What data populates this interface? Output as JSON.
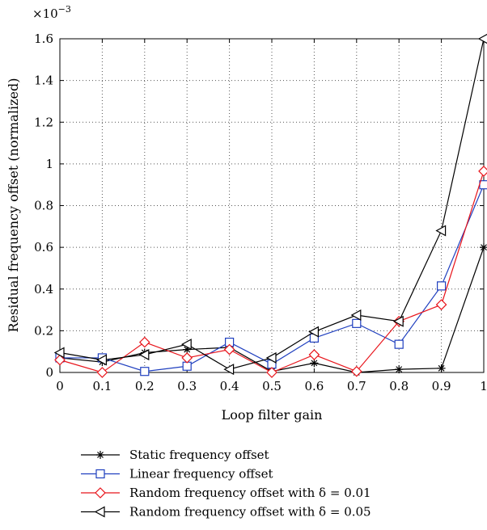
{
  "chart_data": {
    "type": "line",
    "xlabel": "Loop filter gain",
    "ylabel": "Residual frequency offset (normalized)",
    "y_multiplier_label": "×10",
    "y_multiplier_exp": "−3",
    "xlim": [
      0,
      1
    ],
    "ylim": [
      0,
      1.6
    ],
    "x_ticks": [
      0,
      0.1,
      0.2,
      0.3,
      0.4,
      0.5,
      0.6,
      0.7,
      0.8,
      0.9,
      1
    ],
    "x_tick_labels": [
      "0",
      "0.1",
      "0.2",
      "0.3",
      "0.4",
      "0.5",
      "0.6",
      "0.7",
      "0.8",
      "0.9",
      "1"
    ],
    "y_ticks": [
      0,
      0.2,
      0.4,
      0.6,
      0.8,
      1,
      1.2,
      1.4,
      1.6
    ],
    "y_tick_labels": [
      "0",
      "0.2",
      "0.4",
      "0.6",
      "0.8",
      "1",
      "1.2",
      "1.4",
      "1.6"
    ],
    "grid": true,
    "legend_position": "below",
    "x": [
      0,
      0.1,
      0.2,
      0.3,
      0.4,
      0.5,
      0.6,
      0.7,
      0.8,
      0.9,
      1
    ],
    "series": [
      {
        "name": "Static frequency offset",
        "color": "#000000",
        "marker": "star",
        "values": [
          0.07,
          0.05,
          0.095,
          0.11,
          0.12,
          0.005,
          0.045,
          0.0,
          0.015,
          0.02,
          0.6
        ]
      },
      {
        "name": "Linear frequency offset",
        "color": "#1f3fbf",
        "marker": "square",
        "values": [
          0.07,
          0.07,
          0.005,
          0.03,
          0.145,
          0.04,
          0.165,
          0.235,
          0.135,
          0.415,
          0.9
        ]
      },
      {
        "name": "Random frequency offset with δ = 0.01",
        "color": "#e8141b",
        "marker": "diamond",
        "values": [
          0.06,
          0.0,
          0.145,
          0.07,
          0.11,
          0.0,
          0.085,
          0.005,
          0.245,
          0.325,
          0.965
        ]
      },
      {
        "name": "Random frequency offset with δ = 0.05",
        "color": "#000000",
        "marker": "triangle-left",
        "values": [
          0.095,
          0.06,
          0.085,
          0.135,
          0.015,
          0.07,
          0.195,
          0.275,
          0.245,
          0.68,
          1.6
        ]
      }
    ]
  }
}
